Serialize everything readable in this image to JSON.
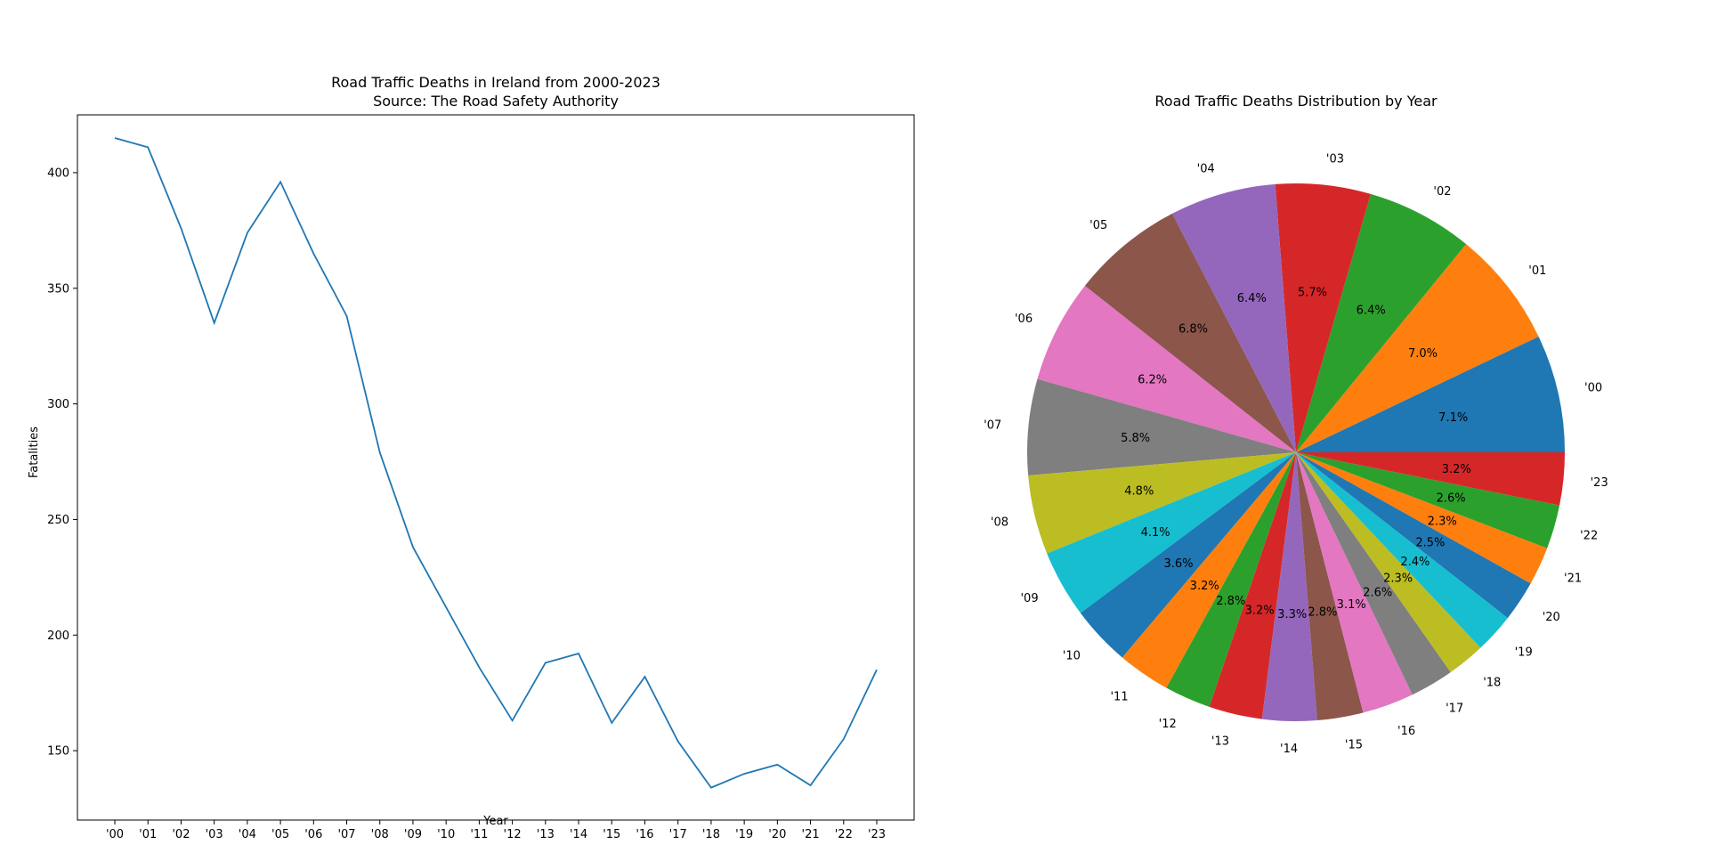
{
  "chart_data": [
    {
      "type": "line",
      "title": "Road Traffic Deaths in Ireland from 2000-2023",
      "subtitle": "Source: The Road Safety Authority",
      "xlabel": "Year",
      "ylabel": "Fatalities",
      "categories": [
        "'00",
        "'01",
        "'02",
        "'03",
        "'04",
        "'05",
        "'06",
        "'07",
        "'08",
        "'09",
        "'10",
        "'11",
        "'12",
        "'13",
        "'14",
        "'15",
        "'16",
        "'17",
        "'18",
        "'19",
        "'20",
        "'21",
        "'22",
        "'23"
      ],
      "values": [
        415,
        411,
        376,
        335,
        374,
        396,
        365,
        338,
        279,
        238,
        212,
        186,
        163,
        188,
        192,
        162,
        182,
        154,
        134,
        140,
        144,
        135,
        155,
        185
      ],
      "ylim": [
        120,
        425
      ],
      "yticks": [
        150,
        200,
        250,
        300,
        350,
        400
      ],
      "grid": false,
      "color": "#1f77b4"
    },
    {
      "type": "pie",
      "title": "Road Traffic Deaths Distribution by Year",
      "labels": [
        "'00",
        "'01",
        "'02",
        "'03",
        "'04",
        "'05",
        "'06",
        "'07",
        "'08",
        "'09",
        "'10",
        "'11",
        "'12",
        "'13",
        "'14",
        "'15",
        "'16",
        "'17",
        "'18",
        "'19",
        "'20",
        "'21",
        "'22",
        "'23"
      ],
      "pct_labels": [
        "7.1%",
        "7.0%",
        "6.4%",
        "5.7%",
        "6.4%",
        "6.8%",
        "6.2%",
        "5.8%",
        "4.8%",
        "4.1%",
        "3.6%",
        "3.2%",
        "2.8%",
        "3.2%",
        "3.3%",
        "2.8%",
        "3.1%",
        "2.6%",
        "2.3%",
        "2.4%",
        "2.5%",
        "2.3%",
        "2.6%",
        "3.2%"
      ],
      "values": [
        415,
        411,
        376,
        335,
        374,
        396,
        365,
        338,
        279,
        238,
        212,
        186,
        163,
        188,
        192,
        162,
        182,
        154,
        134,
        140,
        144,
        135,
        155,
        185
      ],
      "colors": [
        "#1f77b4",
        "#ff7f0e",
        "#2ca02c",
        "#d62728",
        "#9467bd",
        "#8c564b",
        "#e377c2",
        "#7f7f7f",
        "#bcbd22",
        "#17becf",
        "#1f77b4",
        "#ff7f0e",
        "#2ca02c",
        "#d62728",
        "#9467bd",
        "#8c564b",
        "#e377c2",
        "#7f7f7f",
        "#bcbd22",
        "#17becf",
        "#1f77b4",
        "#ff7f0e",
        "#2ca02c",
        "#d62728"
      ]
    }
  ]
}
